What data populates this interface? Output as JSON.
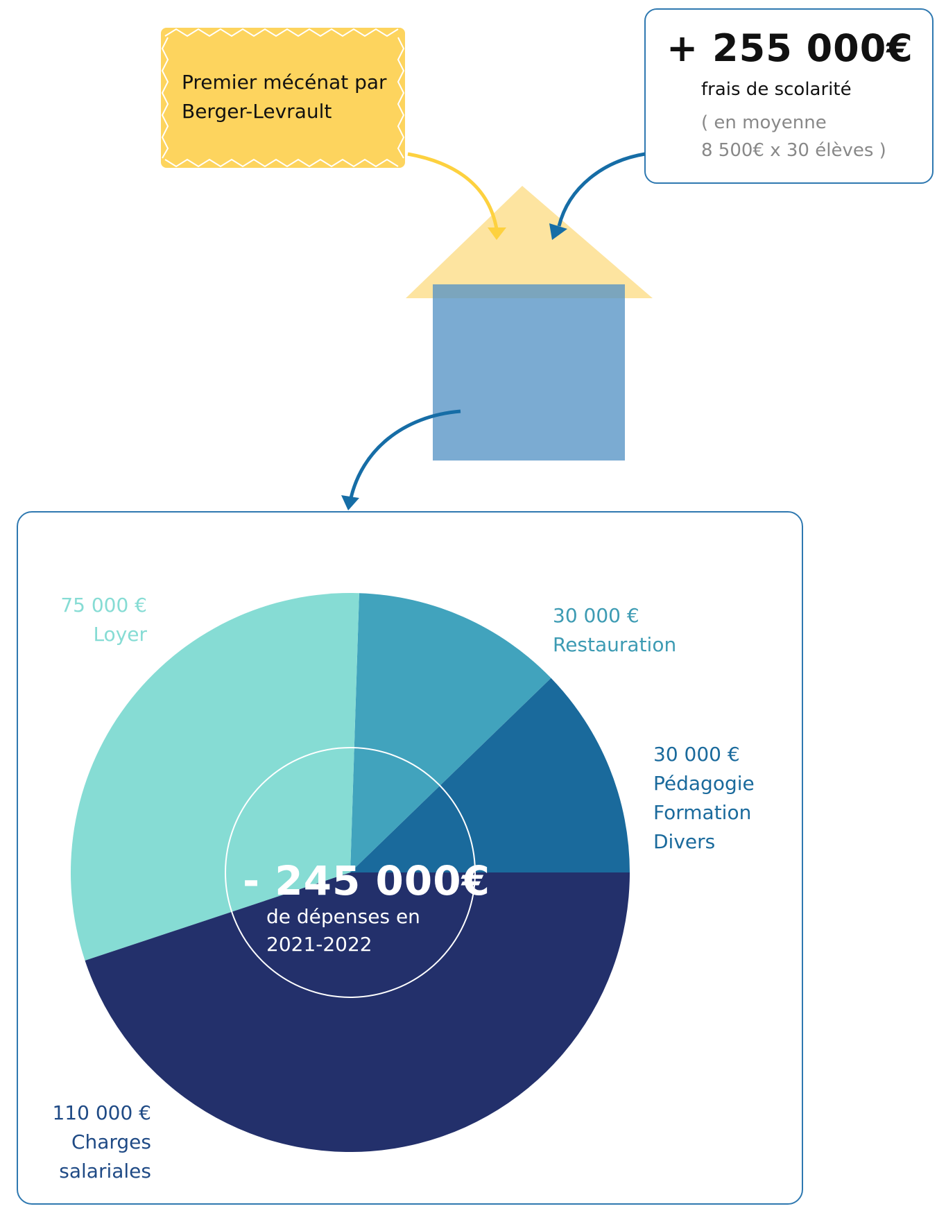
{
  "mecenat_note": {
    "text": "Premier mécénat par Berger-Levrault"
  },
  "income": {
    "amount": "+ 255 000€",
    "label": "frais de scolarité",
    "note_line1": "( en moyenne",
    "note_line2": "8 500€ x 30 élèves )"
  },
  "expenses": {
    "amount": "- 245 000€",
    "desc_line1": "de dépenses en",
    "desc_line2": "2021-2022"
  },
  "colors": {
    "note_yellow": "#fdd45e",
    "box_border": "#2e78b0",
    "roof": "#fde4a0",
    "house": "#5694c5"
  },
  "chart_data": {
    "type": "pie",
    "title": "",
    "start": "3 o'clock, counter-clockwise",
    "total": 245000,
    "slices": [
      {
        "amount": "30 000 €",
        "value": 30000,
        "labels": [
          "Pédagogie",
          "Formation",
          "Divers"
        ],
        "color": "#1a6a9c",
        "label_color": "#1a6a9c"
      },
      {
        "amount": "30 000 €",
        "value": 30000,
        "labels": [
          "Restauration"
        ],
        "color": "#41a3bd",
        "label_color": "#3d9bb3"
      },
      {
        "amount": "75 000 €",
        "value": 75000,
        "labels": [
          "Loyer"
        ],
        "color": "#86dcd4",
        "label_color": "#86dcd4"
      },
      {
        "amount": "110 000 €",
        "value": 110000,
        "labels": [
          "Charges",
          "salariales"
        ],
        "color": "#23306b",
        "label_color": "#1f4a85"
      }
    ]
  }
}
